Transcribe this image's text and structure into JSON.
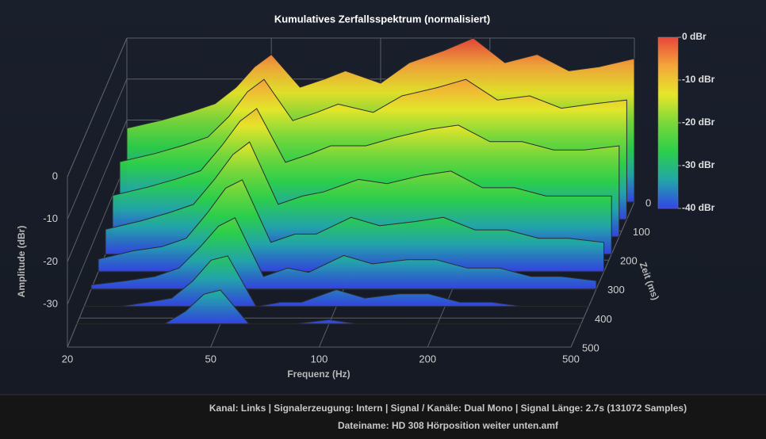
{
  "chart_data": {
    "type": "waterfall",
    "title": "Kumulatives Zerfallsspektrum (normalisiert)",
    "x_label": "Frequenz (Hz)",
    "y_label": "Amplitude (dBr)",
    "t_label": "Zeit (ms)",
    "xscale": "log",
    "xlim": [
      20,
      500
    ],
    "xticks": [
      20,
      50,
      100,
      200,
      500
    ],
    "ylim": [
      -40,
      0
    ],
    "yticks": [
      0,
      -10,
      -20,
      -30
    ],
    "tlim": [
      0,
      500
    ],
    "tticks": [
      0,
      100,
      200,
      300,
      400,
      500
    ],
    "colorbar_ticks": [
      {
        "value": 0,
        "label": "0 dBr"
      },
      {
        "value": -10,
        "label": "-10 dBr"
      },
      {
        "value": -20,
        "label": "-20 dBr"
      },
      {
        "value": -30,
        "label": "-30 dBr"
      },
      {
        "value": -40,
        "label": "-40 dBr"
      }
    ],
    "colorscale": [
      "#e8463a",
      "#f4a63a",
      "#e6e62a",
      "#7ad83a",
      "#2ccf4a",
      "#22a6a8",
      "#3344e6"
    ],
    "grid": true,
    "frequencies": [
      20,
      25,
      30,
      35,
      40,
      45,
      50,
      60,
      70,
      80,
      100,
      120,
      150,
      180,
      220,
      270,
      330,
      400,
      500
    ],
    "series": [
      {
        "time": 0,
        "values": [
          -22,
          -20,
          -18,
          -16,
          -12,
          -7,
          -4,
          -12,
          -10,
          -8,
          -11,
          -6,
          -3,
          0,
          -6,
          -4,
          -8,
          -7,
          -5
        ]
      },
      {
        "time": 60,
        "values": [
          -26,
          -24,
          -22,
          -20,
          -15,
          -9,
          -6,
          -16,
          -14,
          -12,
          -14,
          -10,
          -8,
          -6,
          -11,
          -10,
          -13,
          -12,
          -11
        ]
      },
      {
        "time": 120,
        "values": [
          -30,
          -28,
          -26,
          -24,
          -18,
          -12,
          -9,
          -22,
          -20,
          -18,
          -18,
          -16,
          -14,
          -13,
          -17,
          -17,
          -19,
          -19,
          -18
        ]
      },
      {
        "time": 180,
        "values": [
          -34,
          -32,
          -30,
          -28,
          -22,
          -16,
          -13,
          -28,
          -26,
          -25,
          -22,
          -23,
          -21,
          -20,
          -24,
          -24,
          -26,
          -26,
          -26
        ]
      },
      {
        "time": 240,
        "values": [
          -37,
          -35,
          -34,
          -32,
          -26,
          -20,
          -18,
          -33,
          -31,
          -31,
          -27,
          -29,
          -28,
          -27,
          -30,
          -30,
          -32,
          -32,
          -33
        ]
      },
      {
        "time": 300,
        "values": [
          -39,
          -38,
          -37,
          -35,
          -30,
          -25,
          -23,
          -37,
          -35,
          -36,
          -32,
          -34,
          -33,
          -33,
          -35,
          -35,
          -37,
          -37,
          -38
        ]
      },
      {
        "time": 360,
        "values": [
          -40,
          -40,
          -39,
          -38,
          -34,
          -29,
          -28,
          -40,
          -39,
          -39,
          -36,
          -38,
          -37,
          -37,
          -39,
          -39,
          -40,
          -40,
          -40
        ]
      },
      {
        "time": 420,
        "values": [
          -40,
          -40,
          -40,
          -40,
          -37,
          -33,
          -32,
          -40,
          -40,
          -40,
          -39,
          -40,
          -40,
          -40,
          -40,
          -40,
          -40,
          -40,
          -40
        ]
      }
    ]
  },
  "footer": {
    "info": "Kanal: Links  |  Signalerzeugung: Intern  |  Signal / Kanäle: Dual Mono  |  Signal Länge: 2.7s (131072 Samples)",
    "file": "Dateiname: HD 308 Hörposition weiter unten.amf"
  }
}
